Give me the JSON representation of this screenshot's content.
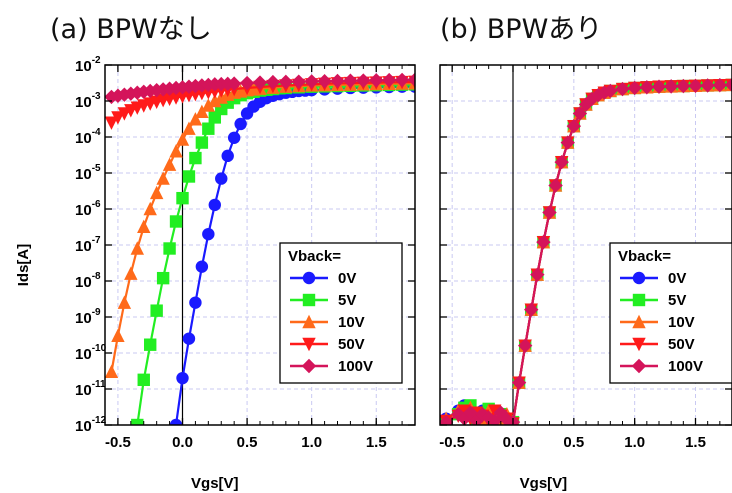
{
  "chart_data": [
    {
      "type": "line",
      "title": "(a) BPWなし",
      "xlabel": "Vgs[V]",
      "ylabel": "Ids[A]",
      "xlim": [
        -0.6,
        1.8
      ],
      "ylim": [
        1e-12,
        0.01
      ],
      "yscale": "log",
      "grid": true,
      "legend_title": "Vback=",
      "legend_position": "bottom-right",
      "x_ticks": [
        "-0.5",
        "0.0",
        "0.5",
        "1.0",
        "1.5"
      ],
      "y_ticks": [
        -12,
        -11,
        -10,
        -9,
        -8,
        -7,
        -6,
        -5,
        -4,
        -3,
        -2
      ],
      "series": [
        {
          "name": "0V",
          "color": "#1a1aff",
          "marker": "circle",
          "x": [
            -0.05,
            0.0,
            0.05,
            0.1,
            0.15,
            0.2,
            0.25,
            0.3,
            0.35,
            0.4,
            0.45,
            0.5,
            0.55,
            0.6,
            0.65,
            0.7,
            0.75,
            0.8,
            0.85,
            0.9,
            0.95,
            1.0,
            1.1,
            1.2,
            1.3,
            1.4,
            1.5,
            1.6,
            1.7,
            1.8
          ],
          "y": [
            1e-12,
            2e-11,
            2.5e-10,
            2.5e-09,
            2.5e-08,
            2e-07,
            1.3e-06,
            7e-06,
            3e-05,
            9.5e-05,
            0.00023,
            0.00045,
            0.0007,
            0.00095,
            0.0012,
            0.0014,
            0.00155,
            0.0017,
            0.0018,
            0.0019,
            0.00195,
            0.002,
            0.0021,
            0.0022,
            0.0023,
            0.00235,
            0.0024,
            0.00245,
            0.0025,
            0.0025
          ]
        },
        {
          "name": "5V",
          "color": "#22ee22",
          "marker": "square",
          "x": [
            -0.35,
            -0.3,
            -0.25,
            -0.2,
            -0.15,
            -0.1,
            -0.05,
            0.0,
            0.05,
            0.1,
            0.15,
            0.2,
            0.25,
            0.3,
            0.35,
            0.4,
            0.45,
            0.5,
            0.55,
            0.6,
            0.65,
            0.7,
            0.75,
            0.8,
            0.9,
            1.0,
            1.1,
            1.2,
            1.3,
            1.4,
            1.5,
            1.6,
            1.7,
            1.8
          ],
          "y": [
            1e-12,
            1.8e-11,
            1.7e-10,
            1.5e-09,
            1.2e-08,
            8e-08,
            4.5e-07,
            2e-06,
            8e-06,
            2.6e-05,
            7e-05,
            0.00017,
            0.00035,
            0.0006,
            0.0009,
            0.0012,
            0.00145,
            0.00165,
            0.0018,
            0.00195,
            0.00205,
            0.00215,
            0.00225,
            0.0023,
            0.0024,
            0.0025,
            0.00255,
            0.0026,
            0.00265,
            0.0027,
            0.00275,
            0.0028,
            0.00285,
            0.0029
          ]
        },
        {
          "name": "10V",
          "color": "#ff6a1a",
          "marker": "triangle-up",
          "x": [
            -0.55,
            -0.5,
            -0.45,
            -0.4,
            -0.35,
            -0.3,
            -0.25,
            -0.2,
            -0.15,
            -0.1,
            -0.05,
            0.0,
            0.05,
            0.1,
            0.15,
            0.2,
            0.25,
            0.3,
            0.35,
            0.4,
            0.45,
            0.5,
            0.55,
            0.6,
            0.7,
            0.8,
            0.9,
            1.0,
            1.1,
            1.2,
            1.3,
            1.4,
            1.5,
            1.6,
            1.7,
            1.8
          ],
          "y": [
            3e-11,
            3e-10,
            2.5e-09,
            1.6e-08,
            8e-08,
            3.2e-07,
            1e-06,
            2.8e-06,
            7e-06,
            1.7e-05,
            4e-05,
            8.5e-05,
            0.00017,
            0.00031,
            0.0005,
            0.00075,
            0.001,
            0.00125,
            0.0015,
            0.0017,
            0.00185,
            0.002,
            0.0021,
            0.0022,
            0.00235,
            0.0025,
            0.0026,
            0.0027,
            0.00275,
            0.0028,
            0.00285,
            0.0029,
            0.00295,
            0.003,
            0.00305,
            0.0031
          ]
        },
        {
          "name": "50V",
          "color": "#ff1a1a",
          "marker": "triangle-down",
          "x": [
            -0.55,
            -0.5,
            -0.45,
            -0.4,
            -0.35,
            -0.3,
            -0.25,
            -0.2,
            -0.15,
            -0.1,
            -0.05,
            0.0,
            0.05,
            0.1,
            0.15,
            0.2,
            0.25,
            0.3,
            0.35,
            0.4,
            0.5,
            0.6,
            0.7,
            0.8,
            0.9,
            1.0,
            1.1,
            1.2,
            1.3,
            1.4,
            1.5,
            1.6,
            1.7,
            1.8
          ],
          "y": [
            0.00025,
            0.00035,
            0.00045,
            0.00055,
            0.00065,
            0.00075,
            0.00085,
            0.00095,
            0.00105,
            0.00115,
            0.00125,
            0.00135,
            0.00145,
            0.00155,
            0.00165,
            0.00175,
            0.00185,
            0.00195,
            0.00205,
            0.00215,
            0.0023,
            0.00245,
            0.0026,
            0.0027,
            0.0028,
            0.0029,
            0.003,
            0.0031,
            0.00315,
            0.0032,
            0.00325,
            0.0033,
            0.00335,
            0.0034
          ]
        },
        {
          "name": "100V",
          "color": "#d4145a",
          "marker": "diamond",
          "x": [
            -0.55,
            -0.5,
            -0.45,
            -0.4,
            -0.35,
            -0.3,
            -0.25,
            -0.2,
            -0.15,
            -0.1,
            -0.05,
            0.0,
            0.05,
            0.1,
            0.15,
            0.2,
            0.25,
            0.3,
            0.35,
            0.4,
            0.5,
            0.6,
            0.7,
            0.8,
            0.9,
            1.0,
            1.1,
            1.2,
            1.3,
            1.4,
            1.5,
            1.6,
            1.7,
            1.8
          ],
          "y": [
            0.0013,
            0.0014,
            0.0015,
            0.0016,
            0.0017,
            0.0018,
            0.0019,
            0.002,
            0.0021,
            0.0022,
            0.0023,
            0.0024,
            0.0025,
            0.0026,
            0.0027,
            0.0028,
            0.0029,
            0.00295,
            0.003,
            0.00305,
            0.00315,
            0.00325,
            0.00335,
            0.0034,
            0.00345,
            0.0035,
            0.00355,
            0.0036,
            0.00365,
            0.0037,
            0.00375,
            0.0038,
            0.00385,
            0.0039
          ]
        }
      ]
    },
    {
      "type": "line",
      "title": "(b) BPWあり",
      "xlabel": "Vgs[V]",
      "ylabel": "",
      "xlim": [
        -0.6,
        1.8
      ],
      "ylim": [
        1e-12,
        0.01
      ],
      "yscale": "log",
      "grid": true,
      "legend_title": "Vback=",
      "legend_position": "bottom-right",
      "x_ticks": [
        "-0.5",
        "0.0",
        "0.5",
        "1.0",
        "1.5"
      ],
      "series": [
        {
          "name": "0V",
          "color": "#1a1aff",
          "marker": "circle",
          "x": [
            -0.55,
            -0.45,
            -0.4,
            -0.35,
            -0.3,
            -0.25,
            -0.2,
            -0.15,
            -0.1,
            -0.05,
            0.0,
            0.05,
            0.1,
            0.15,
            0.2,
            0.25,
            0.3,
            0.35,
            0.4,
            0.45,
            0.5,
            0.55,
            0.6,
            0.65,
            0.7,
            0.75,
            0.8,
            0.9,
            1.0,
            1.1,
            1.2,
            1.3,
            1.4,
            1.5,
            1.6,
            1.7,
            1.8
          ],
          "y": [
            1.5e-12,
            2.5e-12,
            3.5e-12,
            2e-12,
            1.5e-12,
            2.5e-12,
            1.5e-12,
            2e-12,
            1.2e-12,
            1.5e-12,
            1.2e-12,
            1.5e-11,
            1.6e-10,
            1.6e-09,
            1.5e-08,
            1.2e-07,
            8e-07,
            4.5e-06,
            2e-05,
            7e-05,
            0.0002,
            0.00045,
            0.0008,
            0.00115,
            0.00145,
            0.0017,
            0.0019,
            0.00215,
            0.0023,
            0.0024,
            0.0025,
            0.00255,
            0.0026,
            0.00265,
            0.0027,
            0.00275,
            0.0028
          ]
        },
        {
          "name": "5V",
          "color": "#22ee22",
          "marker": "square",
          "x": [
            -0.55,
            -0.45,
            -0.4,
            -0.35,
            -0.3,
            -0.25,
            -0.2,
            -0.15,
            -0.1,
            -0.05,
            0.0,
            0.05,
            0.1,
            0.15,
            0.2,
            0.25,
            0.3,
            0.35,
            0.4,
            0.45,
            0.5,
            0.55,
            0.6,
            0.65,
            0.7,
            0.75,
            0.8,
            0.9,
            1.0,
            1.1,
            1.2,
            1.3,
            1.4,
            1.5,
            1.6,
            1.7,
            1.8
          ],
          "y": [
            1.2e-12,
            2e-12,
            3e-12,
            3.5e-12,
            1.5e-12,
            2.2e-12,
            2.8e-12,
            1.5e-12,
            2e-12,
            1.3e-12,
            1.2e-12,
            1.5e-11,
            1.6e-10,
            1.6e-09,
            1.5e-08,
            1.2e-07,
            8e-07,
            4.5e-06,
            2e-05,
            7e-05,
            0.0002,
            0.00045,
            0.0008,
            0.00115,
            0.00145,
            0.0017,
            0.0019,
            0.00215,
            0.0023,
            0.0024,
            0.0025,
            0.00255,
            0.0026,
            0.00265,
            0.0027,
            0.00275,
            0.0028
          ]
        },
        {
          "name": "10V",
          "color": "#ff6a1a",
          "marker": "triangle-up",
          "x": [
            -0.55,
            -0.45,
            -0.4,
            -0.35,
            -0.3,
            -0.25,
            -0.2,
            -0.15,
            -0.1,
            -0.05,
            0.0,
            0.05,
            0.1,
            0.15,
            0.2,
            0.25,
            0.3,
            0.35,
            0.4,
            0.45,
            0.5,
            0.55,
            0.6,
            0.65,
            0.7,
            0.75,
            0.8,
            0.9,
            1.0,
            1.1,
            1.2,
            1.3,
            1.4,
            1.5,
            1.6,
            1.7,
            1.8
          ],
          "y": [
            1.5e-12,
            2.5e-12,
            2e-12,
            3e-12,
            1.8e-12,
            1.5e-12,
            2.5e-12,
            2.2e-12,
            1.5e-12,
            2e-12,
            1.2e-12,
            1.5e-11,
            1.6e-10,
            1.6e-09,
            1.5e-08,
            1.2e-07,
            8e-07,
            4.5e-06,
            2e-05,
            7e-05,
            0.0002,
            0.00045,
            0.0008,
            0.00115,
            0.00145,
            0.0017,
            0.0019,
            0.00215,
            0.0023,
            0.0024,
            0.0025,
            0.00255,
            0.0026,
            0.00265,
            0.0027,
            0.00275,
            0.0028
          ]
        },
        {
          "name": "50V",
          "color": "#ff1a1a",
          "marker": "triangle-down",
          "x": [
            -0.55,
            -0.45,
            -0.4,
            -0.35,
            -0.3,
            -0.25,
            -0.2,
            -0.15,
            -0.1,
            -0.05,
            0.0,
            0.05,
            0.1,
            0.15,
            0.2,
            0.25,
            0.3,
            0.35,
            0.4,
            0.45,
            0.5,
            0.55,
            0.6,
            0.65,
            0.7,
            0.75,
            0.8,
            0.9,
            1.0,
            1.1,
            1.2,
            1.3,
            1.4,
            1.5,
            1.6,
            1.7,
            1.8
          ],
          "y": [
            1.3e-12,
            1.8e-12,
            2.5e-12,
            1.5e-12,
            2.2e-12,
            1.8e-12,
            1.3e-12,
            2.5e-12,
            1.8e-12,
            1.5e-12,
            1.1e-12,
            1.5e-11,
            1.6e-10,
            1.6e-09,
            1.5e-08,
            1.2e-07,
            8e-07,
            4.5e-06,
            2e-05,
            7e-05,
            0.0002,
            0.00045,
            0.0008,
            0.00115,
            0.00145,
            0.0017,
            0.0019,
            0.00215,
            0.0023,
            0.0024,
            0.0025,
            0.00255,
            0.0026,
            0.00265,
            0.0027,
            0.00275,
            0.0028
          ]
        },
        {
          "name": "100V",
          "color": "#d4145a",
          "marker": "diamond",
          "x": [
            -0.55,
            -0.45,
            -0.4,
            -0.35,
            -0.3,
            -0.25,
            -0.2,
            -0.15,
            -0.1,
            -0.05,
            0.0,
            0.05,
            0.1,
            0.15,
            0.2,
            0.25,
            0.3,
            0.35,
            0.4,
            0.45,
            0.5,
            0.55,
            0.6,
            0.65,
            0.7,
            0.75,
            0.8,
            0.9,
            1.0,
            1.1,
            1.2,
            1.3,
            1.4,
            1.5,
            1.6,
            1.7,
            1.8
          ],
          "y": [
            1.2e-12,
            2e-12,
            1.5e-12,
            2.2e-12,
            1.3e-12,
            2e-12,
            1.6e-12,
            1.3e-12,
            2.2e-12,
            1.4e-12,
            1.2e-12,
            1.5e-11,
            1.6e-10,
            1.6e-09,
            1.5e-08,
            1.2e-07,
            8e-07,
            4.5e-06,
            2e-05,
            7e-05,
            0.0002,
            0.00045,
            0.0008,
            0.00115,
            0.00145,
            0.0017,
            0.0019,
            0.00215,
            0.0023,
            0.0024,
            0.0025,
            0.00255,
            0.0026,
            0.00265,
            0.0027,
            0.00275,
            0.0028
          ]
        }
      ]
    }
  ]
}
